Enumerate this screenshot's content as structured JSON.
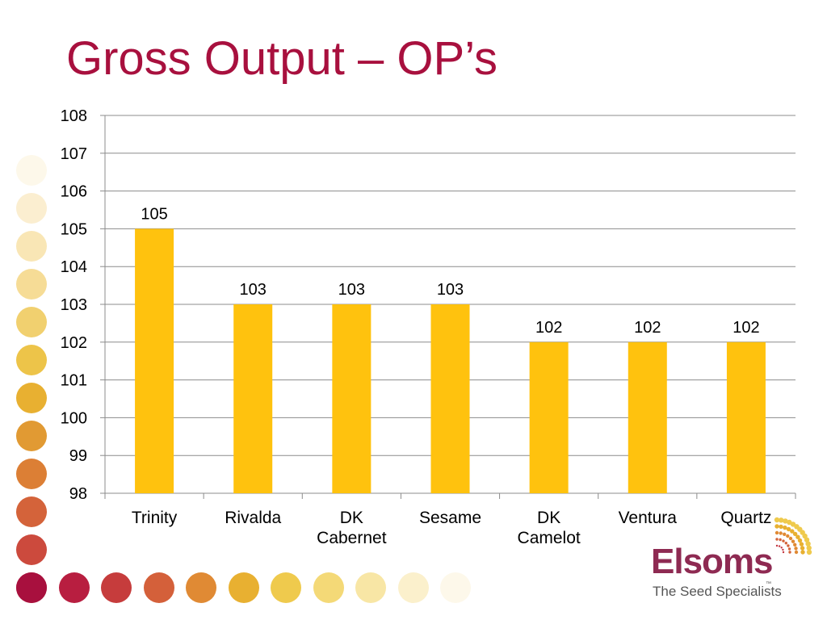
{
  "slide": {
    "title": "Gross Output – OP’s"
  },
  "chart_data": {
    "type": "bar",
    "categories": [
      [
        "Trinity"
      ],
      [
        "Rivalda"
      ],
      [
        "DK",
        "Cabernet"
      ],
      [
        "Sesame"
      ],
      [
        "DK",
        "Camelot"
      ],
      [
        "Ventura"
      ],
      [
        "Quartz"
      ]
    ],
    "values": [
      105,
      103,
      103,
      103,
      102,
      102,
      102
    ],
    "data_labels": [
      "105",
      "103",
      "103",
      "103",
      "102",
      "102",
      "102"
    ],
    "ylim": [
      98,
      108
    ],
    "yticks": [
      98,
      99,
      100,
      101,
      102,
      103,
      104,
      105,
      106,
      107,
      108
    ],
    "grid": true,
    "legend": "none",
    "bar_color": "#ffc20e",
    "title": "",
    "xlabel": "",
    "ylabel": ""
  },
  "decor": {
    "dot_colors_left": [
      "#fdf8ea",
      "#fbeed0",
      "#f9e6b5",
      "#f6dc96",
      "#f1d06f",
      "#edc449",
      "#e8b031",
      "#e19a33",
      "#dc7f35",
      "#d4633a",
      "#cc4a3d",
      "#c23440"
    ],
    "dot_colors_bottom": [
      "#a8103e",
      "#b81e40",
      "#c63c3c",
      "#d4603a",
      "#e08a34",
      "#e8b031",
      "#efca4d",
      "#f4d977",
      "#f8e6a5",
      "#fbf0cc",
      "#fdf8ea"
    ]
  },
  "logo": {
    "name": "Elsoms",
    "tagline": "The Seed Specialists",
    "tm": "™",
    "accent_color": "#8e2a52"
  }
}
